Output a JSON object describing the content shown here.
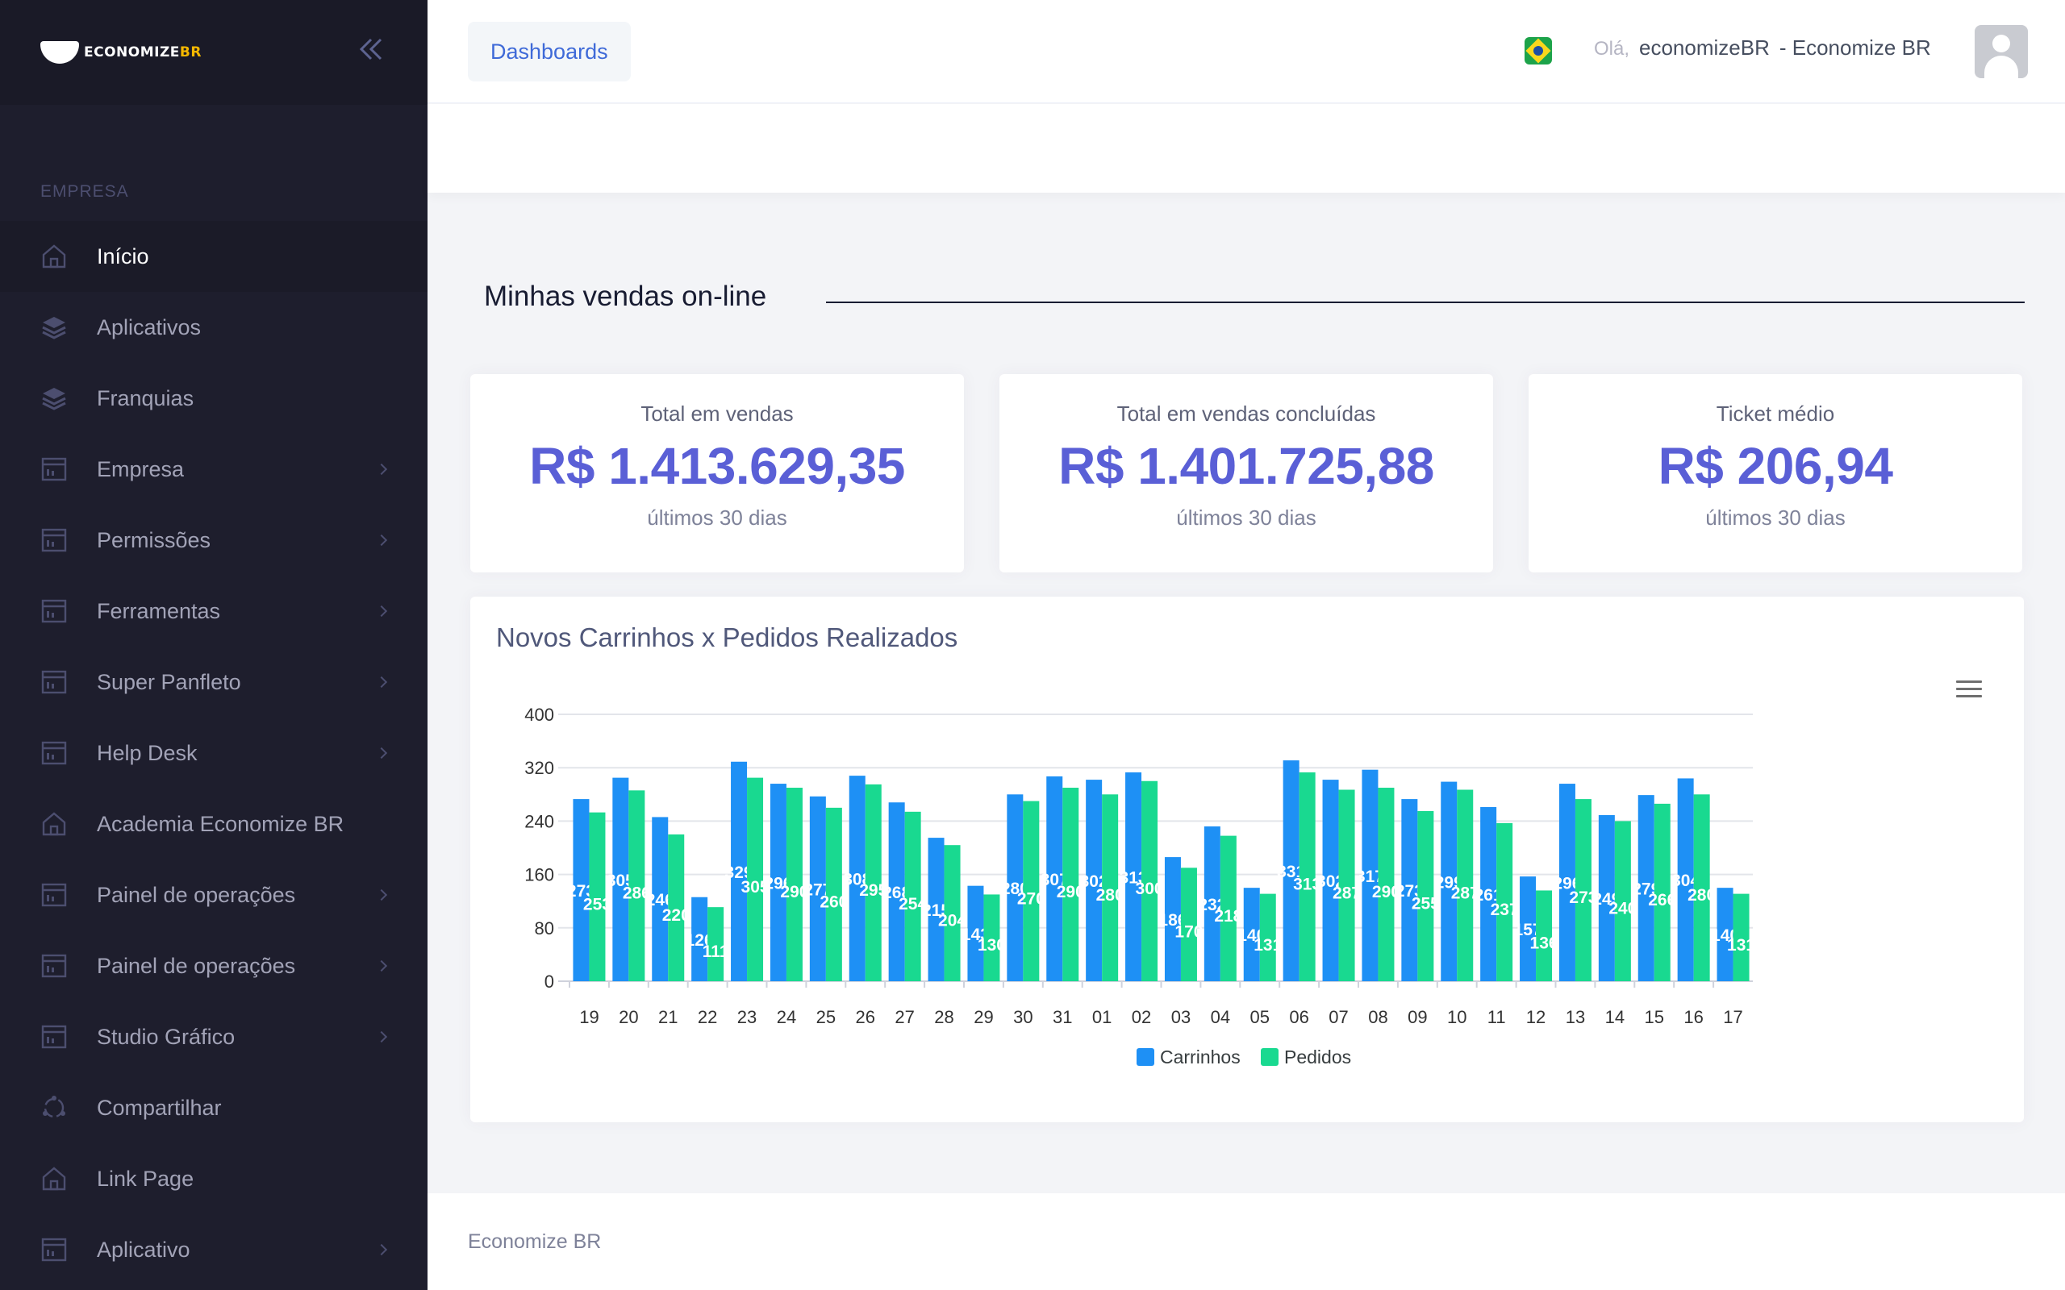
{
  "brand": {
    "logo_text": "ECONOMIZE",
    "logo_suffix": "BR"
  },
  "sidebar": {
    "section": "EMPRESA",
    "items": [
      {
        "label": "Início",
        "icon": "home-icon",
        "active": true,
        "chevron": false
      },
      {
        "label": "Aplicativos",
        "icon": "layers-icon",
        "chevron": false
      },
      {
        "label": "Franquias",
        "icon": "layers-icon",
        "chevron": false
      },
      {
        "label": "Empresa",
        "icon": "layout-icon",
        "chevron": true
      },
      {
        "label": "Permissões",
        "icon": "layout-icon",
        "chevron": true
      },
      {
        "label": "Ferramentas",
        "icon": "layout-icon",
        "chevron": true
      },
      {
        "label": "Super Panfleto",
        "icon": "layout-icon",
        "chevron": true
      },
      {
        "label": "Help Desk",
        "icon": "layout-icon",
        "chevron": true
      },
      {
        "label": "Academia Economize BR",
        "icon": "home-icon",
        "chevron": false
      },
      {
        "label": "Painel de operações",
        "icon": "layout-icon",
        "chevron": true
      },
      {
        "label": "Painel de operações",
        "icon": "layout-icon",
        "chevron": true
      },
      {
        "label": "Studio Gráfico",
        "icon": "layout-icon",
        "chevron": true
      },
      {
        "label": "Compartilhar",
        "icon": "share-icon",
        "chevron": false
      },
      {
        "label": "Link Page",
        "icon": "home-icon",
        "chevron": false
      },
      {
        "label": "Aplicativo",
        "icon": "layout-icon",
        "chevron": true
      }
    ]
  },
  "header": {
    "dashboards_label": "Dashboards",
    "greeting": "Olá,",
    "username": "economizeBR",
    "company": "- Economize BR"
  },
  "main": {
    "section_title": "Minhas vendas on-line",
    "stats": [
      {
        "title": "Total em vendas",
        "value": "R$ 1.413.629,35",
        "period": "últimos 30 dias"
      },
      {
        "title": "Total em vendas concluídas",
        "value": "R$ 1.401.725,88",
        "period": "últimos 30 dias"
      },
      {
        "title": "Ticket médio",
        "value": "R$ 206,94",
        "period": "últimos 30 dias"
      }
    ]
  },
  "chart_data": {
    "type": "bar",
    "title": "Novos Carrinhos x Pedidos Realizados",
    "categories": [
      "19",
      "20",
      "21",
      "22",
      "23",
      "24",
      "25",
      "26",
      "27",
      "28",
      "29",
      "30",
      "31",
      "01",
      "02",
      "03",
      "04",
      "05",
      "06",
      "07",
      "08",
      "09",
      "10",
      "11",
      "12",
      "13",
      "14",
      "15",
      "16",
      "17"
    ],
    "series": [
      {
        "name": "Carrinhos",
        "color": "#1e90f5",
        "values": [
          273,
          305,
          246,
          126,
          329,
          296,
          277,
          308,
          268,
          215,
          143,
          280,
          307,
          302,
          313,
          186,
          232,
          140,
          331,
          302,
          317,
          273,
          299,
          261,
          157,
          296,
          249,
          279,
          304,
          140
        ]
      },
      {
        "name": "Pedidos",
        "color": "#19d990",
        "values": [
          253,
          286,
          220,
          111,
          305,
          290,
          260,
          295,
          254,
          204,
          130,
          270,
          290,
          280,
          300,
          170,
          218,
          131,
          313,
          287,
          290,
          255,
          287,
          237,
          136,
          273,
          240,
          266,
          280,
          131
        ]
      }
    ],
    "ylim": [
      0,
      400
    ],
    "yticks": [
      0,
      80,
      160,
      240,
      320,
      400
    ],
    "grid": true,
    "legend": "bottom"
  },
  "footer": {
    "text": "Economize BR"
  }
}
